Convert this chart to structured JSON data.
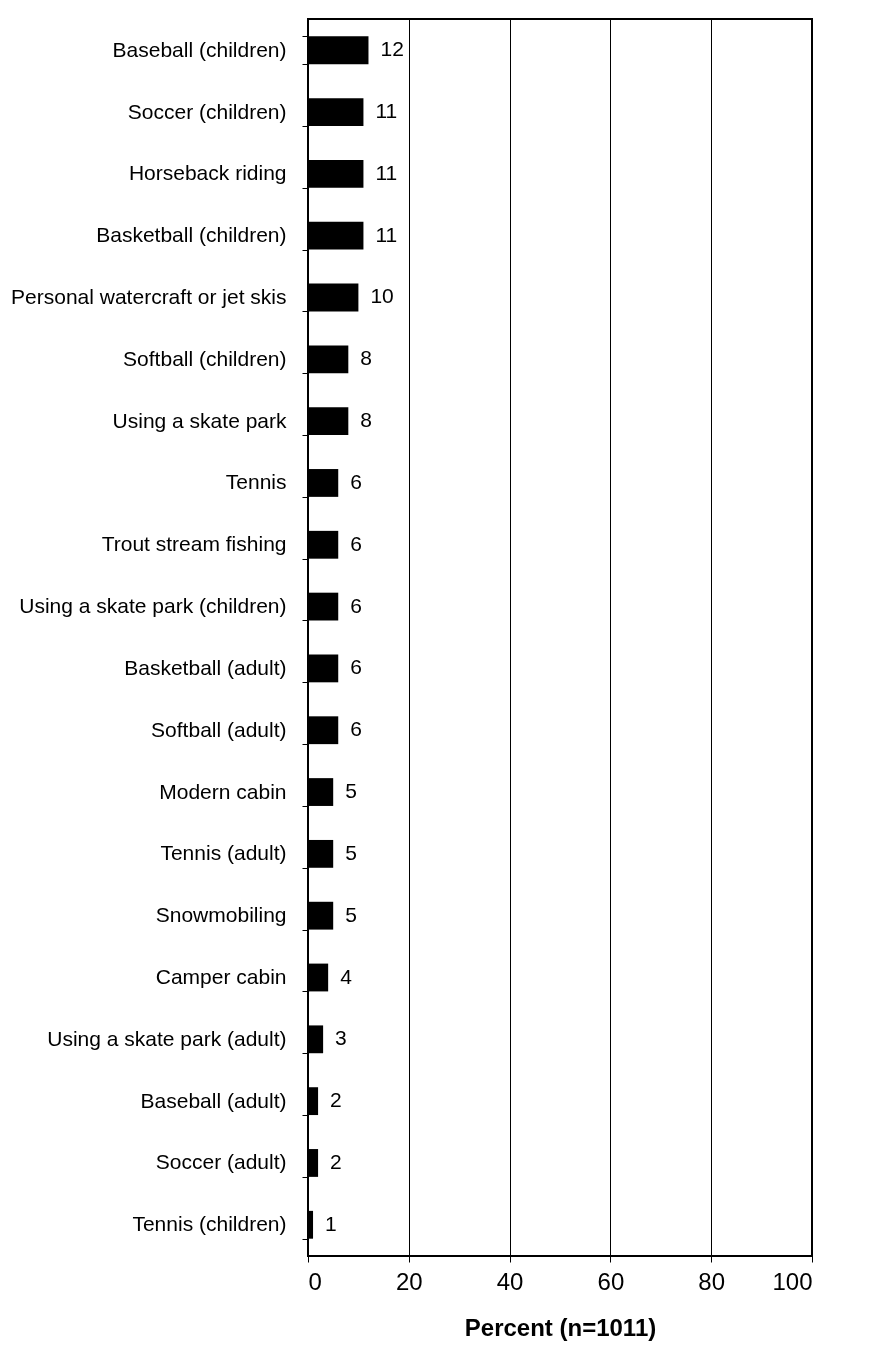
{
  "chart_data": {
    "type": "bar",
    "orientation": "horizontal",
    "xlabel": "Percent (n=1011)",
    "categories": [
      "Baseball (children)",
      "Soccer (children)",
      "Horseback riding",
      "Basketball (children)",
      "Personal watercraft or jet skis",
      "Softball (children)",
      "Using a skate park",
      "Tennis",
      "Trout stream fishing",
      "Using a skate park (children)",
      "Basketball (adult)",
      "Softball (adult)",
      "Modern  cabin",
      "Tennis  (adult)",
      "Snowmobiling ",
      "Camper cabin ",
      "Using a skate park (adult)",
      "Baseball (adult)",
      "Soccer (adult)",
      "Tennis (children)"
    ],
    "values": [
      12,
      11,
      11,
      11,
      10,
      8,
      8,
      6,
      6,
      6,
      6,
      6,
      5,
      5,
      5,
      4,
      3,
      2,
      2,
      1
    ],
    "color": "#000000",
    "data_labels": true,
    "grid": "x",
    "xlim": [
      0,
      100
    ],
    "xticks": [
      0,
      20,
      40,
      60,
      80,
      100
    ]
  }
}
